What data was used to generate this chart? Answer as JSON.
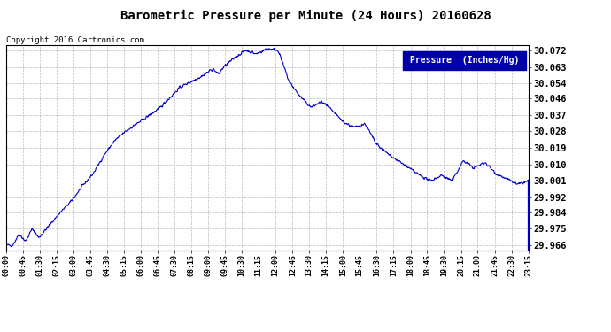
{
  "title": "Barometric Pressure per Minute (24 Hours) 20160628",
  "copyright": "Copyright 2016 Cartronics.com",
  "legend_label": "Pressure  (Inches/Hg)",
  "line_color": "#0000cc",
  "background_color": "#ffffff",
  "grid_color": "#aaaaaa",
  "yticks": [
    29.966,
    29.975,
    29.984,
    29.992,
    30.001,
    30.01,
    30.019,
    30.028,
    30.037,
    30.046,
    30.054,
    30.063,
    30.072
  ],
  "ytick_labels": [
    "29.966",
    "29.975",
    "29.984",
    "29.992",
    "30.001",
    "30.010",
    "30.019",
    "30.028",
    "30.037",
    "30.046",
    "30.054",
    "30.063",
    "30.072"
  ],
  "ylim": [
    29.963,
    30.075
  ],
  "xtick_labels": [
    "00:00",
    "00:45",
    "01:30",
    "02:15",
    "03:00",
    "03:45",
    "04:30",
    "05:15",
    "06:00",
    "06:45",
    "07:30",
    "08:15",
    "09:00",
    "09:45",
    "10:30",
    "11:15",
    "12:00",
    "12:45",
    "13:30",
    "14:15",
    "15:00",
    "15:45",
    "16:30",
    "17:15",
    "18:00",
    "18:45",
    "19:30",
    "20:15",
    "21:00",
    "21:45",
    "22:30",
    "23:15"
  ],
  "legend_bg": "#0000aa",
  "legend_fg": "#ffffff"
}
